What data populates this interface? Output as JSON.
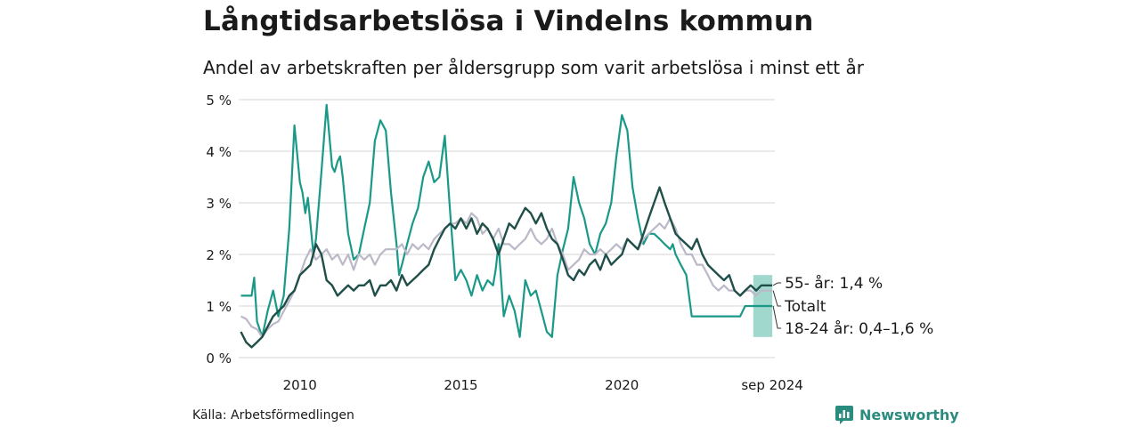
{
  "title": "Långtidsarbetslösa i Vindelns kommun",
  "subtitle": "Andel av arbetskraften per åldersgrupp som varit arbetslösa i minst ett år",
  "source": "Källa: Arbetsförmedlingen",
  "brand": "Newsworthy",
  "colors": {
    "series_55": "#1f4f48",
    "series_total": "#bbb8c8",
    "series_youth": "#1a9988",
    "youth_band": "#8fd1c6",
    "grid": "#dddddd"
  },
  "chart_data": {
    "type": "line",
    "ylim": [
      0,
      5
    ],
    "xlim": [
      2008.1,
      2024.75
    ],
    "ytick_labels": [
      "0 %",
      "1 %",
      "2 %",
      "3 %",
      "4 %",
      "5 %"
    ],
    "yticks": [
      0,
      1,
      2,
      3,
      4,
      5
    ],
    "xticks": [
      2010,
      2015,
      2020,
      2024.67
    ],
    "xtick_labels": [
      "2010",
      "2015",
      "2020",
      "sep 2024"
    ],
    "series": [
      {
        "key": "youth",
        "x": [
          2008.17,
          2008.33,
          2008.5,
          2008.58,
          2008.67,
          2008.83,
          2009.0,
          2009.17,
          2009.33,
          2009.5,
          2009.67,
          2009.83,
          2010.0,
          2010.08,
          2010.17,
          2010.25,
          2010.42,
          2010.5,
          2010.67,
          2010.83,
          2011.0,
          2011.08,
          2011.17,
          2011.25,
          2011.33,
          2011.5,
          2011.67,
          2011.83,
          2012.0,
          2012.17,
          2012.33,
          2012.5,
          2012.67,
          2012.83,
          2013.0,
          2013.08,
          2013.17,
          2013.33,
          2013.5,
          2013.67,
          2013.83,
          2014.0,
          2014.17,
          2014.33,
          2014.5,
          2014.67,
          2014.83,
          2015.0,
          2015.17,
          2015.33,
          2015.5,
          2015.67,
          2015.83,
          2016.0,
          2016.08,
          2016.17,
          2016.33,
          2016.5,
          2016.67,
          2016.83,
          2017.0,
          2017.17,
          2017.33,
          2017.5,
          2017.67,
          2017.83,
          2018.0,
          2018.17,
          2018.33,
          2018.5,
          2018.67,
          2018.83,
          2019.0,
          2019.17,
          2019.33,
          2019.5,
          2019.67,
          2019.83,
          2020.0,
          2020.17,
          2020.33,
          2020.5,
          2020.67,
          2020.83,
          2021.0,
          2021.17,
          2021.33,
          2021.5,
          2021.58,
          2021.67,
          2021.75,
          2021.83,
          2022.0,
          2022.17,
          2022.33,
          2022.5,
          2022.67,
          2022.83,
          2023.0,
          2023.17,
          2023.33,
          2023.5,
          2023.67,
          2023.83,
          2023.92,
          2024.0,
          2024.08,
          2024.17,
          2024.25,
          2024.33,
          2024.5,
          2024.67
        ],
        "values": [
          1.2,
          1.2,
          1.2,
          1.55,
          0.7,
          0.4,
          0.9,
          1.3,
          0.8,
          1.2,
          2.5,
          4.5,
          3.4,
          3.2,
          2.8,
          3.1,
          2.0,
          2.3,
          3.6,
          4.9,
          3.7,
          3.6,
          3.8,
          3.9,
          3.5,
          2.4,
          1.9,
          2.0,
          2.5,
          3.0,
          4.2,
          4.6,
          4.4,
          3.2,
          2.2,
          1.6,
          1.8,
          2.2,
          2.6,
          2.9,
          3.5,
          3.8,
          3.4,
          3.5,
          4.3,
          2.8,
          1.5,
          1.7,
          1.5,
          1.2,
          1.6,
          1.3,
          1.5,
          1.4,
          1.7,
          2.2,
          0.8,
          1.2,
          0.9,
          0.4,
          1.5,
          1.2,
          1.3,
          0.9,
          0.5,
          0.4,
          1.6,
          2.1,
          2.5,
          3.5,
          3.0,
          2.7,
          2.2,
          2.0,
          2.4,
          2.6,
          3.0,
          3.9,
          4.7,
          4.4,
          3.3,
          2.7,
          2.2,
          2.4,
          2.4,
          2.3,
          2.2,
          2.1,
          2.2,
          2.0,
          1.9,
          1.8,
          1.6,
          0.8,
          0.8,
          0.8,
          0.8,
          0.8,
          0.8,
          0.8,
          0.8,
          0.8,
          0.8,
          1.0,
          1.0,
          1.0,
          1.0,
          1.0,
          1.0,
          1.0,
          1.0,
          1.0
        ]
      },
      {
        "key": "total",
        "x": [
          2008.17,
          2008.33,
          2008.5,
          2008.67,
          2008.83,
          2009.0,
          2009.17,
          2009.33,
          2009.5,
          2009.67,
          2009.83,
          2010.0,
          2010.17,
          2010.33,
          2010.5,
          2010.67,
          2010.83,
          2011.0,
          2011.17,
          2011.33,
          2011.5,
          2011.67,
          2011.83,
          2012.0,
          2012.17,
          2012.33,
          2012.5,
          2012.67,
          2012.83,
          2013.0,
          2013.17,
          2013.33,
          2013.5,
          2013.67,
          2013.83,
          2014.0,
          2014.17,
          2014.33,
          2014.5,
          2014.67,
          2014.83,
          2015.0,
          2015.17,
          2015.33,
          2015.5,
          2015.67,
          2015.83,
          2016.0,
          2016.17,
          2016.33,
          2016.5,
          2016.67,
          2016.83,
          2017.0,
          2017.17,
          2017.33,
          2017.5,
          2017.67,
          2017.83,
          2018.0,
          2018.17,
          2018.33,
          2018.5,
          2018.67,
          2018.83,
          2019.0,
          2019.17,
          2019.33,
          2019.5,
          2019.67,
          2019.83,
          2020.0,
          2020.17,
          2020.33,
          2020.5,
          2020.67,
          2020.83,
          2021.0,
          2021.17,
          2021.33,
          2021.5,
          2021.67,
          2021.83,
          2022.0,
          2022.17,
          2022.33,
          2022.5,
          2022.67,
          2022.83,
          2023.0,
          2023.17,
          2023.33,
          2023.5,
          2023.67,
          2023.83,
          2024.0,
          2024.17,
          2024.33,
          2024.5,
          2024.67
        ],
        "values": [
          0.8,
          0.75,
          0.6,
          0.55,
          0.4,
          0.55,
          0.65,
          0.7,
          0.9,
          1.1,
          1.3,
          1.6,
          1.9,
          2.1,
          1.9,
          2.0,
          2.1,
          1.9,
          2.0,
          1.8,
          2.0,
          1.7,
          2.0,
          1.9,
          2.0,
          1.8,
          2.0,
          2.1,
          2.1,
          2.1,
          2.2,
          2.0,
          2.2,
          2.1,
          2.2,
          2.1,
          2.3,
          2.4,
          2.5,
          2.6,
          2.6,
          2.7,
          2.6,
          2.8,
          2.7,
          2.4,
          2.5,
          2.3,
          2.5,
          2.2,
          2.2,
          2.1,
          2.2,
          2.3,
          2.5,
          2.3,
          2.2,
          2.3,
          2.5,
          2.2,
          2.0,
          1.7,
          1.8,
          1.9,
          2.1,
          2.0,
          2.0,
          2.1,
          2.0,
          2.1,
          2.2,
          2.1,
          2.3,
          2.2,
          2.1,
          2.3,
          2.4,
          2.5,
          2.6,
          2.5,
          2.7,
          2.5,
          2.2,
          2.0,
          2.0,
          1.8,
          1.8,
          1.6,
          1.4,
          1.3,
          1.4,
          1.3,
          1.3,
          1.2,
          1.3,
          1.3,
          1.2,
          1.3,
          1.3,
          1.3
        ]
      },
      {
        "key": "55",
        "x": [
          2008.17,
          2008.33,
          2008.5,
          2008.67,
          2008.83,
          2009.0,
          2009.17,
          2009.33,
          2009.5,
          2009.67,
          2009.83,
          2010.0,
          2010.17,
          2010.33,
          2010.5,
          2010.67,
          2010.83,
          2011.0,
          2011.17,
          2011.33,
          2011.5,
          2011.67,
          2011.83,
          2012.0,
          2012.17,
          2012.33,
          2012.5,
          2012.67,
          2012.83,
          2013.0,
          2013.17,
          2013.33,
          2013.5,
          2013.67,
          2013.83,
          2014.0,
          2014.17,
          2014.33,
          2014.5,
          2014.67,
          2014.83,
          2015.0,
          2015.17,
          2015.33,
          2015.5,
          2015.67,
          2015.83,
          2016.0,
          2016.17,
          2016.33,
          2016.5,
          2016.67,
          2016.83,
          2017.0,
          2017.17,
          2017.33,
          2017.5,
          2017.67,
          2017.83,
          2018.0,
          2018.17,
          2018.33,
          2018.5,
          2018.67,
          2018.83,
          2019.0,
          2019.17,
          2019.33,
          2019.5,
          2019.67,
          2019.83,
          2020.0,
          2020.17,
          2020.33,
          2020.5,
          2020.67,
          2020.83,
          2021.0,
          2021.17,
          2021.33,
          2021.5,
          2021.67,
          2021.83,
          2022.0,
          2022.17,
          2022.33,
          2022.5,
          2022.67,
          2022.83,
          2023.0,
          2023.17,
          2023.33,
          2023.5,
          2023.67,
          2023.83,
          2024.0,
          2024.17,
          2024.33,
          2024.5,
          2024.67
        ],
        "values": [
          0.5,
          0.3,
          0.2,
          0.3,
          0.4,
          0.6,
          0.8,
          0.9,
          1.0,
          1.2,
          1.3,
          1.6,
          1.7,
          1.8,
          2.2,
          2.0,
          1.5,
          1.4,
          1.2,
          1.3,
          1.4,
          1.3,
          1.4,
          1.4,
          1.5,
          1.2,
          1.4,
          1.4,
          1.5,
          1.3,
          1.6,
          1.4,
          1.5,
          1.6,
          1.7,
          1.8,
          2.1,
          2.3,
          2.5,
          2.6,
          2.5,
          2.7,
          2.5,
          2.7,
          2.4,
          2.6,
          2.5,
          2.3,
          2.0,
          2.3,
          2.6,
          2.5,
          2.7,
          2.9,
          2.8,
          2.6,
          2.8,
          2.5,
          2.3,
          2.2,
          1.9,
          1.6,
          1.5,
          1.7,
          1.6,
          1.8,
          1.9,
          1.7,
          2.0,
          1.8,
          1.9,
          2.0,
          2.3,
          2.2,
          2.1,
          2.4,
          2.7,
          3.0,
          3.3,
          3.0,
          2.7,
          2.4,
          2.3,
          2.2,
          2.1,
          2.3,
          2.0,
          1.8,
          1.7,
          1.6,
          1.5,
          1.6,
          1.3,
          1.2,
          1.3,
          1.4,
          1.3,
          1.4,
          1.4,
          1.4
        ]
      }
    ],
    "youth_band": {
      "x": [
        2024.08,
        2024.67
      ],
      "low": 0.4,
      "high": 1.6
    },
    "end_labels": [
      {
        "key": "55",
        "text": "55- år: 1,4 %"
      },
      {
        "key": "total",
        "text": "Totalt"
      },
      {
        "key": "youth",
        "text": "18-24 år: 0,4–1,6 %"
      }
    ]
  }
}
